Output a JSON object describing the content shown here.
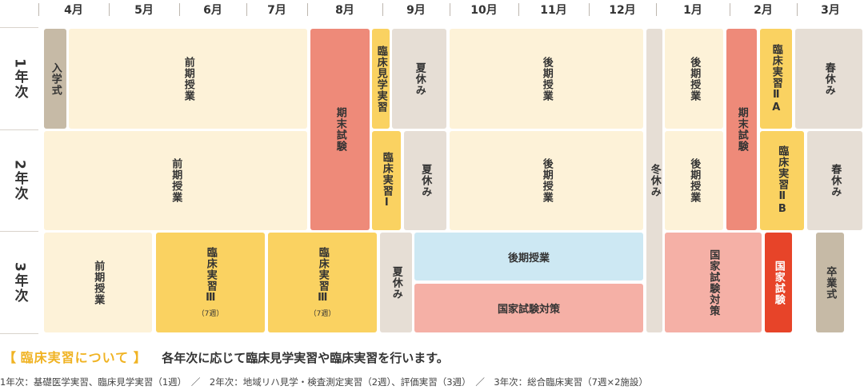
{
  "months": [
    "4月",
    "5月",
    "6月",
    "7月",
    "8月",
    "9月",
    "10月",
    "11月",
    "12月",
    "1月",
    "2月",
    "3月"
  ],
  "years": [
    "1年次",
    "2年次",
    "3年次"
  ],
  "blocks": {
    "y1_entrance": "入学式",
    "y1_first_term": "前期授業",
    "exam_summer": "期末試験",
    "y1_clinical_observation": "臨床見学実習",
    "y1_summer": "夏休み",
    "y1_second_term": "後期授業",
    "winter": "冬休み",
    "y1_second_term_b": "後期授業",
    "exam_winter": "期末試験",
    "y1_clinical_2a": "臨床実習ⅡA",
    "y1_spring": "春休み",
    "y2_first_term": "前期授業",
    "y2_clinical_1": "臨床実習Ⅰ",
    "y2_summer": "夏休み",
    "y2_second_term": "後期授業",
    "y2_second_term_b": "後期授業",
    "y2_clinical_2b": "臨床実習ⅡB",
    "y2_spring": "春休み",
    "y3_first_term": "前期授業",
    "y3_clinical_3a": "臨床実習Ⅲ",
    "y3_clinical_3a_weeks": "（7週）",
    "y3_clinical_3b": "臨床実習Ⅲ",
    "y3_clinical_3b_weeks": "（7週）",
    "y3_summer": "夏休み",
    "y3_second_term": "後期授業",
    "y3_exam_prep": "国家試験対策",
    "y3_exam_prep_b": "国家試験対策",
    "y3_national_exam": "国家試験",
    "y3_graduation": "卒業式"
  },
  "note": {
    "bracket_open": "【",
    "title": "臨床実習について",
    "bracket_close": "】",
    "description": "各年次に応じて臨床見学実習や臨床実習を行います。",
    "detail": "1年次：基礎医学実習、臨床見学実習（1週）　／　2年次：地域リハ見学・検査測定実習（2週）、評価実習（3週）　／　3年次：総合臨床実習（7週×2施設）"
  },
  "colors": {
    "cream": "#fdf2d8",
    "gray": "#e6ded5",
    "khaki": "#c6baa6",
    "salmon": "#ee8a79",
    "yellow": "#fad261",
    "blue": "#cde8f3",
    "pink": "#f5b0a6",
    "red": "#e74429",
    "accent": "#f0b323"
  }
}
